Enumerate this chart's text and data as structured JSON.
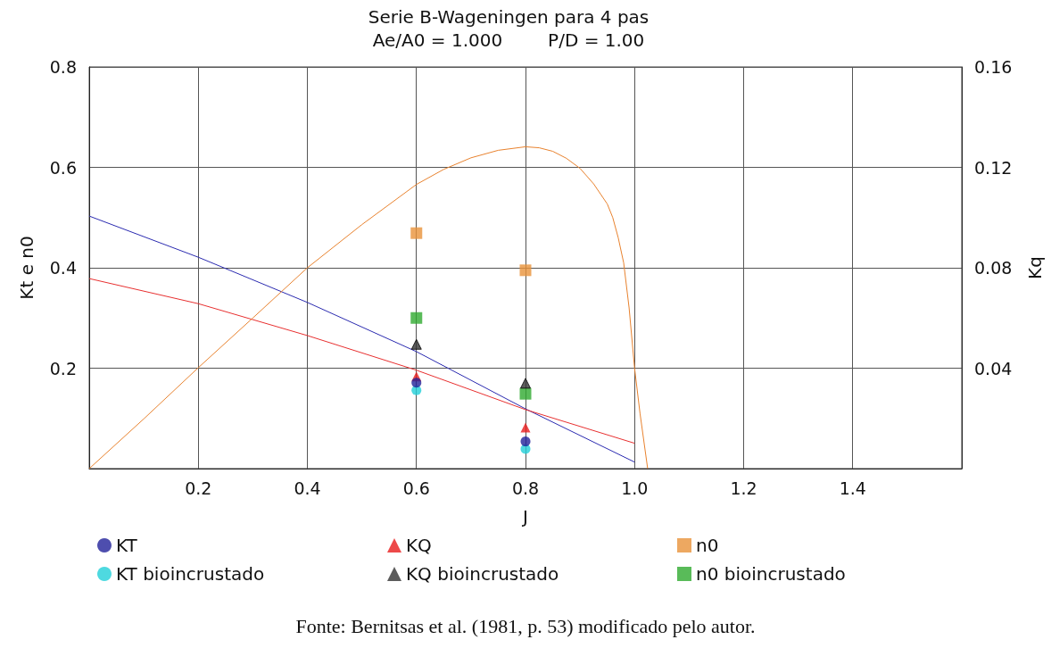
{
  "chart_data": {
    "type": "scatter",
    "title": "Serie B-Wageningen para 4 pas",
    "subtitle": "Ae/A0 = 1.000        P/D = 1.00",
    "xlabel": "J",
    "ylabel": "Kt e n0",
    "y2label": "Kq",
    "annotations": [
      "Fonte: Bernitsas et al. (1981, p. 53) modificado pelo autor."
    ],
    "xlim": [
      0,
      1.6
    ],
    "xticks": [
      0.2,
      0.4,
      0.6,
      0.8,
      {
        "value": 1,
        "label": "1.0"
      },
      1.2,
      1.4
    ],
    "ylim": [
      0,
      0.8
    ],
    "yticks": [
      0.2,
      0.4,
      0.6,
      0.8
    ],
    "y2lim": [
      0,
      0.16
    ],
    "y2ticks": [
      0.04,
      0.08,
      0.12,
      0.16
    ],
    "grid": true,
    "legend": "bottom",
    "series": [
      {
        "type": "line",
        "color": "#2b2bb0",
        "marker": "none",
        "x": [
          0,
          0.2,
          0.4,
          0.6,
          0.8,
          1.0
        ],
        "values": [
          0.503,
          0.421,
          0.331,
          0.233,
          0.119,
          0.013
        ]
      },
      {
        "type": "line",
        "color": "#e83030",
        "marker": "none",
        "axis": "y2",
        "x": [
          0,
          0.2,
          0.4,
          0.6,
          0.8,
          1.0
        ],
        "values": [
          0.0757,
          0.0657,
          0.053,
          0.0392,
          0.0235,
          0.0101
        ]
      },
      {
        "type": "line",
        "color": "#e8822e",
        "marker": "none",
        "x": [
          0,
          0.1,
          0.2,
          0.3,
          0.4,
          0.5,
          0.6,
          0.65,
          0.7,
          0.75,
          0.8,
          0.825,
          0.85,
          0.875,
          0.9,
          0.925,
          0.95,
          0.96,
          0.97,
          0.98,
          0.99,
          1.0,
          1.01,
          1.024
        ],
        "values": [
          0,
          0.099,
          0.201,
          0.3,
          0.4,
          0.486,
          0.566,
          0.596,
          0.619,
          0.634,
          0.641,
          0.639,
          0.632,
          0.618,
          0.598,
          0.567,
          0.527,
          0.5,
          0.46,
          0.41,
          0.32,
          0.2,
          0.11,
          0
        ]
      },
      {
        "name": "KT",
        "color": "#22229a",
        "marker": "circle",
        "x": [
          0.6,
          0.8
        ],
        "values": [
          0.171,
          0.054
        ]
      },
      {
        "name": "KQ",
        "color": "#e81c1c",
        "marker": "triangle",
        "axis": "y2",
        "x": [
          0.6,
          0.8
        ],
        "values": [
          0.0367,
          0.0164
        ]
      },
      {
        "name": "n0",
        "color": "#e8923a",
        "marker": "square",
        "x": [
          0.6,
          0.8
        ],
        "values": [
          0.469,
          0.395
        ]
      },
      {
        "name": "KT bioincrustado",
        "color": "#22d0d8",
        "marker": "circle",
        "x": [
          0.6,
          0.8
        ],
        "values": [
          0.156,
          0.039
        ]
      },
      {
        "name": "KQ bioincrustado",
        "color": "#333333",
        "marker": "triangle",
        "axis": "y2",
        "x": [
          0.6,
          0.8
        ],
        "values": [
          0.0495,
          0.034
        ]
      },
      {
        "name": "n0 bioincrustado",
        "color": "#2faa2f",
        "marker": "square",
        "x": [
          0.6,
          0.8
        ],
        "values": [
          0.3,
          0.149
        ]
      }
    ]
  }
}
